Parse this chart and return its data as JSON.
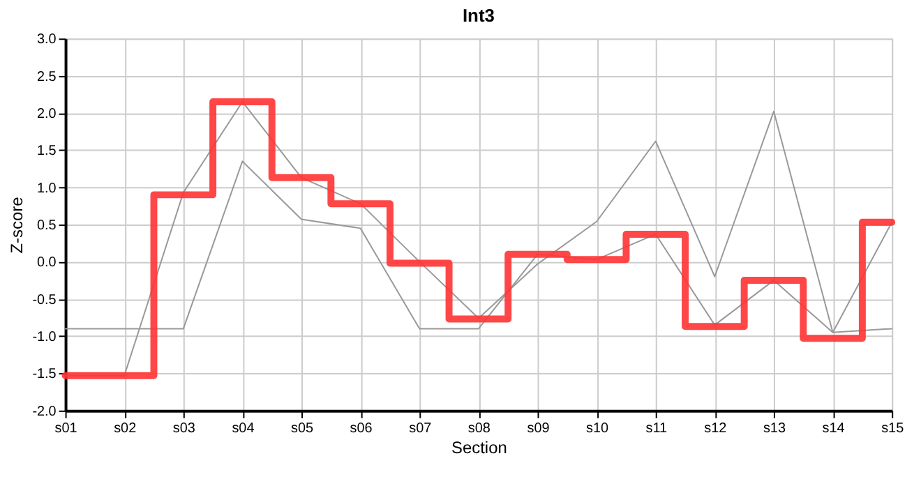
{
  "chart_data": {
    "type": "line",
    "title": "Int3",
    "xlabel": "Section",
    "ylabel": "Z-score",
    "categories": [
      "s01",
      "s02",
      "s03",
      "s04",
      "s05",
      "s06",
      "s07",
      "s08",
      "s09",
      "s10",
      "s11",
      "s12",
      "s13",
      "s14",
      "s15"
    ],
    "series": [
      {
        "color": "#999999",
        "values": [
          -0.9,
          -0.9,
          -0.9,
          1.35,
          0.57,
          0.45,
          -0.9,
          -0.9,
          0.1,
          0.03,
          0.37,
          -0.85,
          -0.25,
          -0.95,
          -0.9
        ]
      },
      {
        "color": "#999999",
        "values": [
          -1.53,
          -1.53,
          0.93,
          2.15,
          1.13,
          0.78,
          0.0,
          -0.76,
          -0.03,
          0.54,
          1.62,
          -0.2,
          2.02,
          -0.95,
          0.53
        ]
      },
      {
        "type": "step",
        "color": "#ff3333",
        "values": [
          -1.53,
          -1.53,
          0.9,
          2.15,
          1.13,
          0.78,
          -0.02,
          -0.77,
          0.1,
          0.03,
          0.37,
          -0.87,
          -0.25,
          -1.03,
          0.53
        ]
      }
    ],
    "ylim": [
      -2.0,
      3.0
    ],
    "yticks": [
      {
        "value": -2,
        "label": "-2.0"
      },
      {
        "value": -1.5,
        "label": "-1.5"
      },
      {
        "value": -1,
        "label": "-1.0"
      },
      {
        "value": -0.5,
        "label": "-0.5"
      },
      {
        "value": 0,
        "label": "0.0"
      },
      {
        "value": 0.5,
        "label": "0.5"
      },
      {
        "value": 1,
        "label": "1.0"
      },
      {
        "value": 1.5,
        "label": "1.5"
      },
      {
        "value": 2,
        "label": "2.0"
      },
      {
        "value": 2.5,
        "label": "2.5"
      },
      {
        "value": 3,
        "label": "3.0"
      }
    ],
    "grid": true
  }
}
